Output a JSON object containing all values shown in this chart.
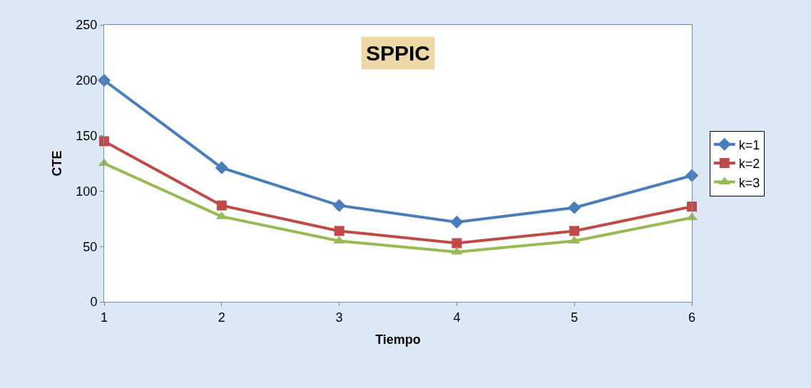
{
  "chart_data": {
    "type": "line",
    "title": "SPPIC",
    "xlabel": "Tiempo",
    "ylabel": "CTE",
    "x": [
      1,
      2,
      3,
      4,
      5,
      6
    ],
    "series": [
      {
        "name": "k=1",
        "color": "#4a7ebb",
        "marker": "diamond",
        "values": [
          200,
          121,
          87,
          72,
          85,
          114
        ]
      },
      {
        "name": "k=2",
        "color": "#be4b48",
        "marker": "square",
        "values": [
          145,
          87,
          64,
          53,
          64,
          86
        ]
      },
      {
        "name": "k=3",
        "color": "#98b954",
        "marker": "triangle",
        "values": [
          125,
          77,
          55,
          45,
          55,
          76
        ]
      }
    ],
    "xlim": [
      1,
      6
    ],
    "xticks": [
      1,
      2,
      3,
      4,
      5,
      6
    ],
    "ylim": [
      0,
      250
    ],
    "yticks": [
      0,
      50,
      100,
      150,
      200,
      250
    ],
    "grid": false,
    "legend": "right",
    "line_style": "solid"
  }
}
